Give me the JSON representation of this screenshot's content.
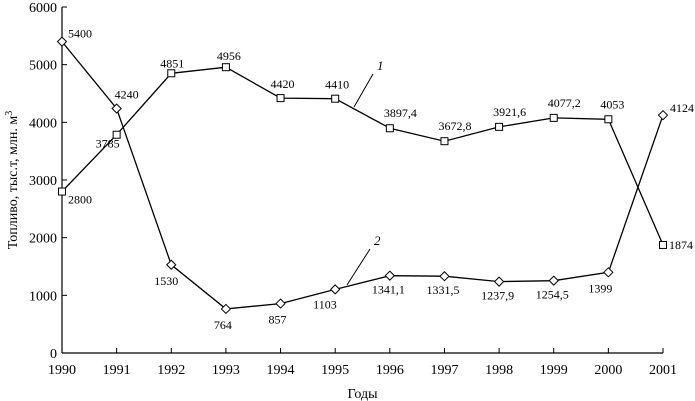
{
  "chart_data": {
    "type": "line",
    "xlabel": "Годы",
    "ylabel": "Топливо, тыс.т, млн. м",
    "ylabel_superscript": "3",
    "x": [
      1990,
      1991,
      1992,
      1993,
      1994,
      1995,
      1996,
      1997,
      1998,
      1999,
      2000,
      2001
    ],
    "xlim": [
      1990,
      2001
    ],
    "ylim": [
      0,
      6000
    ],
    "yticks": [
      0,
      1000,
      2000,
      3000,
      4000,
      5000,
      6000
    ],
    "xtick_labels": [
      "1990",
      "1991",
      "1992",
      "1993",
      "1994",
      "1995",
      "1996",
      "1997",
      "1998",
      "1999",
      "2000",
      "2001"
    ],
    "ytick_labels": [
      "0",
      "1000",
      "2000",
      "3000",
      "4000",
      "5000",
      "6000"
    ],
    "grid": false,
    "series": [
      {
        "name": "1",
        "marker": "square",
        "values": [
          2800,
          3785,
          4851,
          4956,
          4420,
          4410,
          3897.4,
          3672.8,
          3921.6,
          4077.2,
          4053,
          1874
        ],
        "labels": [
          "2800",
          "3785",
          "4851",
          "4956",
          "4420",
          "4410",
          "3897,4",
          "3672,8",
          "3921,6",
          "4077,2",
          "4053",
          "1874"
        ]
      },
      {
        "name": "2",
        "marker": "diamond",
        "values": [
          5400,
          4240,
          1530,
          764,
          857,
          1103,
          1341.1,
          1331.5,
          1237.9,
          1254.5,
          1399,
          4124
        ],
        "labels": [
          "5400",
          "4240",
          "1530",
          "764",
          "857",
          "1103",
          "1341,1",
          "1331,5",
          "1237,9",
          "1254,5",
          "1399",
          "4124"
        ]
      }
    ]
  }
}
